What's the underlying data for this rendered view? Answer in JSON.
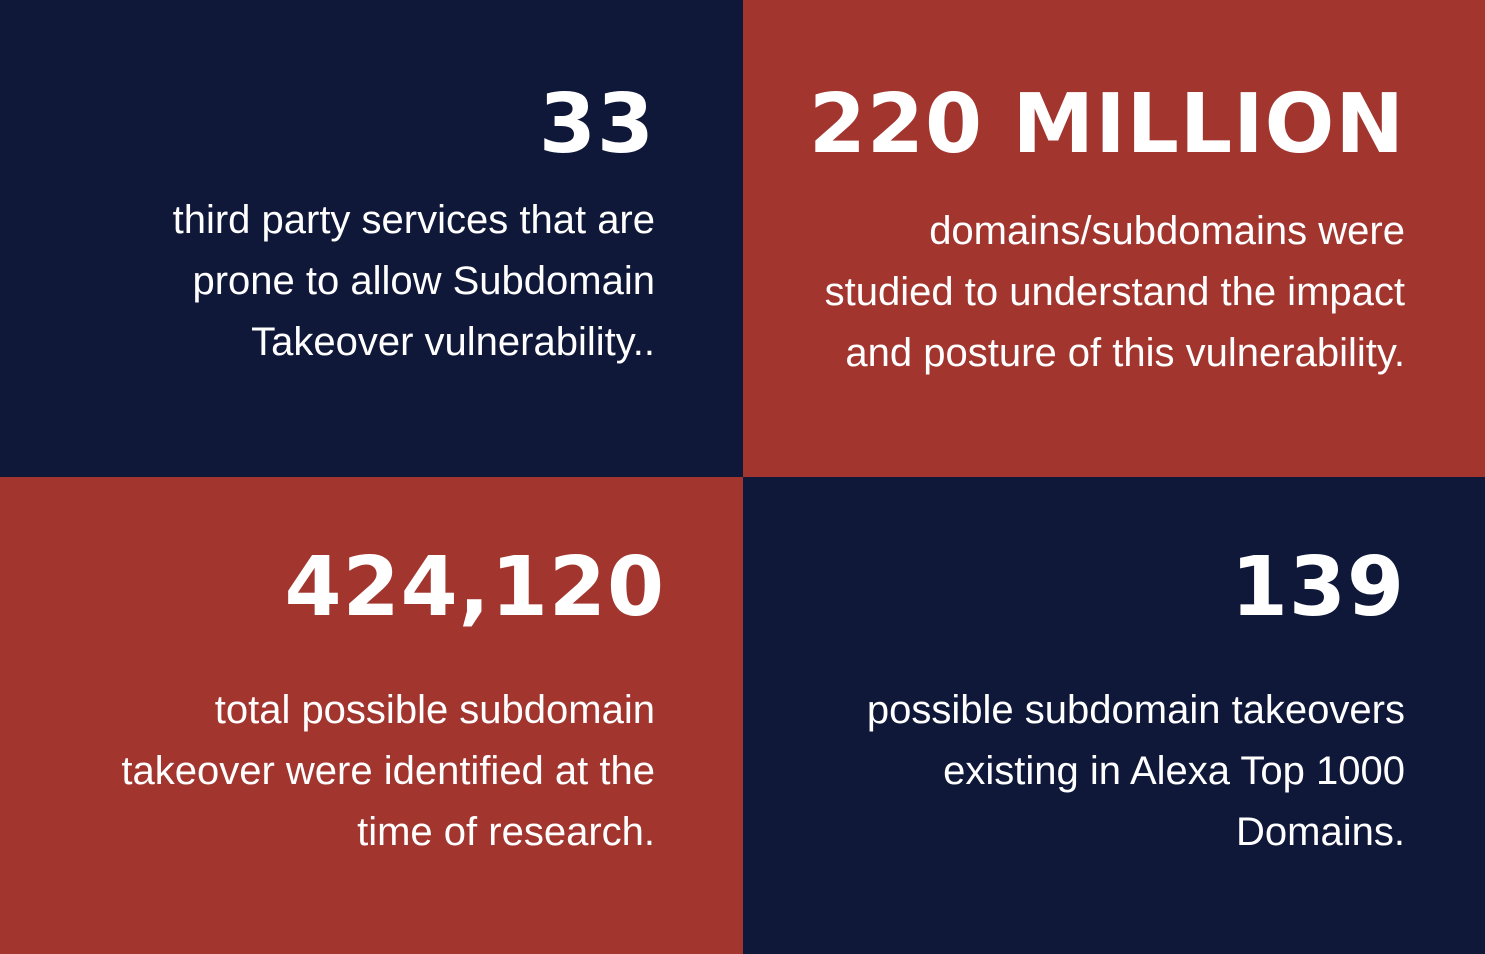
{
  "colors": {
    "navy": "#10183a",
    "red": "#a3352f",
    "text": "#ffffff"
  },
  "stats": [
    {
      "value": "33",
      "lines": [
        "third party services that are",
        "prone to allow Subdomain",
        "Takeover vulnerability.."
      ]
    },
    {
      "value": "220 MILLION",
      "lines": [
        "domains/subdomains were",
        "studied to understand the impact",
        "and posture of this vulnerability."
      ]
    },
    {
      "value": "424,120",
      "lines": [
        "total possible subdomain",
        "takeover were identified at the",
        "time of research."
      ]
    },
    {
      "value": "139",
      "lines": [
        "possible subdomain takeovers",
        "existing in Alexa Top 1000",
        "Domains."
      ]
    }
  ]
}
